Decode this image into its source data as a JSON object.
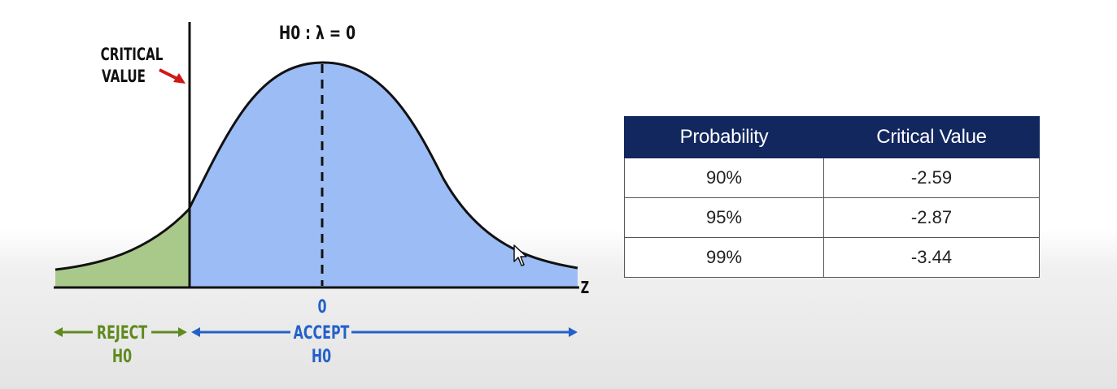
{
  "diagram": {
    "hypothesis": "H0 : λ = 0",
    "critical_label_line1": "CRITICAL",
    "critical_label_line2": "VALUE",
    "axis_var": "Z",
    "zero": "0",
    "reject_line1": "REJECT",
    "reject_line2": "H0",
    "accept_line1": "ACCEPT",
    "accept_line2": "H0",
    "colors": {
      "reject_fill": "#a9c98b",
      "accept_fill": "#9cbcf5",
      "reject_text": "#5f8a1e",
      "accept_text": "#2361c9",
      "arrow_red": "#d01818"
    }
  },
  "table": {
    "headers": [
      "Probability",
      "Critical Value"
    ],
    "rows": [
      [
        "90%",
        "-2.59"
      ],
      [
        "95%",
        "-2.87"
      ],
      [
        "99%",
        "-3.44"
      ]
    ]
  }
}
